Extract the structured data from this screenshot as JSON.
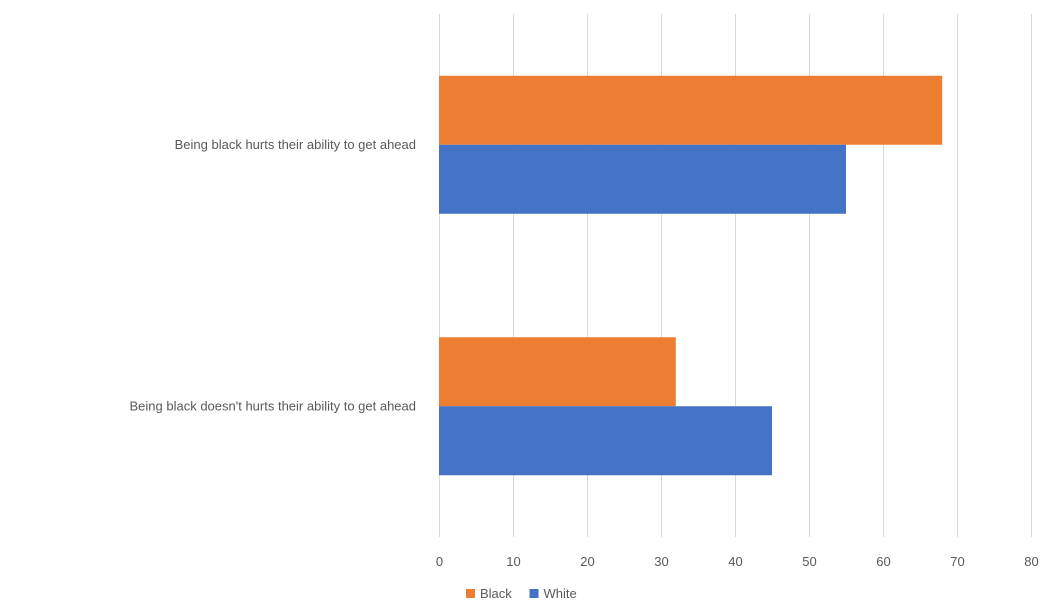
{
  "chart_data": {
    "type": "bar",
    "orientation": "horizontal",
    "title": "",
    "xlabel": "",
    "ylabel": "",
    "categories": [
      "Being black hurts their ability to get ahead",
      "Being black doesn't hurts their ability to get ahead"
    ],
    "series": [
      {
        "name": "Black",
        "color": "#ED7D31",
        "values": [
          68,
          32
        ]
      },
      {
        "name": "White",
        "color": "#4472C4",
        "values": [
          55,
          45
        ]
      }
    ],
    "xlim": [
      0,
      80
    ],
    "xticks": [
      0,
      10,
      20,
      30,
      40,
      50,
      60,
      70,
      80
    ],
    "grid": true,
    "gridline_color": "#d9d9d9",
    "legend_position": "bottom"
  }
}
